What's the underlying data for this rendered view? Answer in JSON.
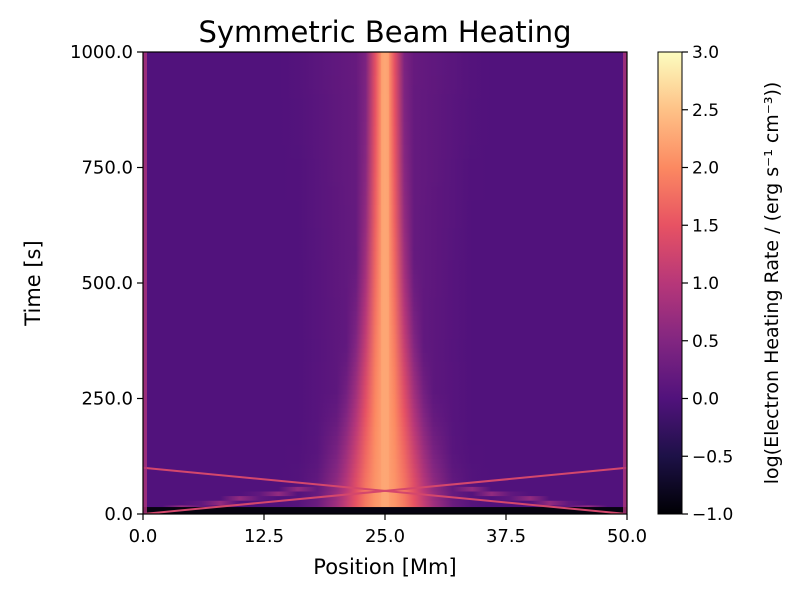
{
  "chart_data": {
    "type": "heatmap",
    "title": "Symmetric Beam Heating",
    "xlabel": "Position [Mm]",
    "ylabel": "Time [s]",
    "xlim": [
      0.0,
      50.0
    ],
    "ylim": [
      0.0,
      1000.0
    ],
    "xticks": [
      0.0,
      12.5,
      25.0,
      37.5,
      50.0
    ],
    "xtick_labels": [
      "0.0",
      "12.5",
      "25.0",
      "37.5",
      "50.0"
    ],
    "yticks": [
      0.0,
      250.0,
      500.0,
      750.0,
      1000.0
    ],
    "ytick_labels": [
      "0.0",
      "250.0",
      "500.0",
      "750.0",
      "1000.0"
    ],
    "colormap": "magma",
    "colorbar": {
      "label": "log(Electron Heating Rate / (erg s⁻¹ cm⁻³))",
      "range": [
        -1.0,
        3.0
      ],
      "ticks": [
        -1.0,
        -0.5,
        0.0,
        0.5,
        1.0,
        1.5,
        2.0,
        2.5,
        3.0
      ],
      "tick_labels": [
        "−1.0",
        "−0.5",
        "0.0",
        "0.5",
        "1.0",
        "1.5",
        "2.0",
        "2.5",
        "3.0"
      ],
      "stops": [
        "#000004",
        "#1d1147",
        "#51127c",
        "#822681",
        "#b73779",
        "#e75263",
        "#fc8961",
        "#fec287",
        "#fcfdbf"
      ]
    },
    "features": [
      {
        "name": "central beam heating core",
        "x_center": 25.0,
        "peak_value": 2.2,
        "time_range": [
          0,
          1000
        ]
      },
      {
        "name": "footpoint heating left",
        "x": 0.3,
        "time_range": [
          0,
          1000
        ]
      },
      {
        "name": "footpoint heating right",
        "x": 49.7,
        "time_range": [
          0,
          1000
        ]
      },
      {
        "name": "crossing fronts",
        "time_range": [
          0,
          100
        ]
      }
    ]
  }
}
